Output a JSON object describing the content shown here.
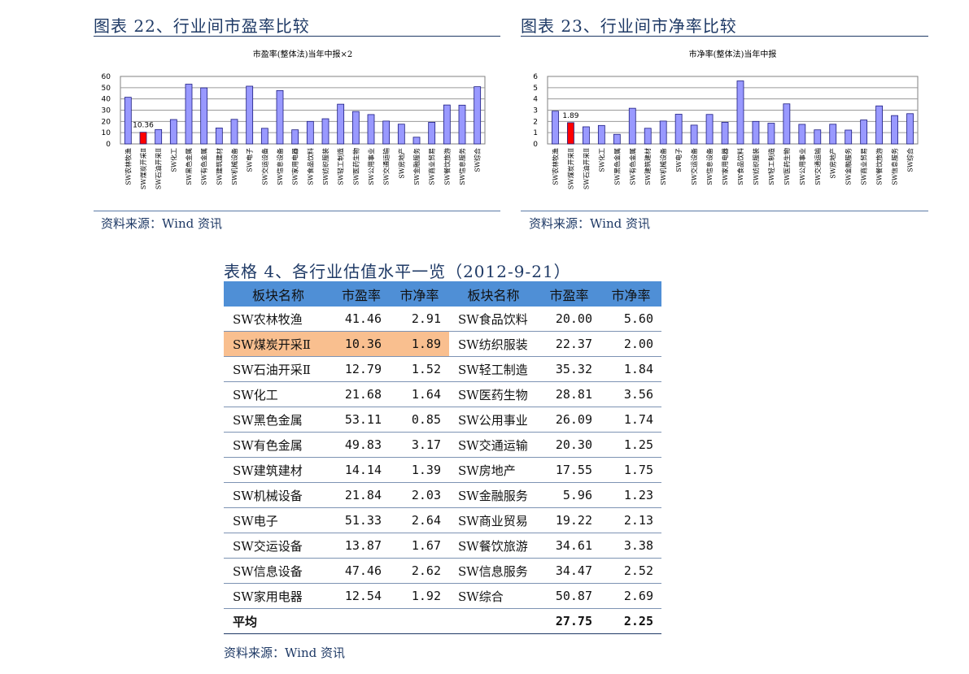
{
  "figure22": {
    "title": "图表 22、行业间市盈率比较",
    "source": "资料来源：Wind 资讯"
  },
  "figure23": {
    "title": "图表 23、行业间市净率比较",
    "source": "资料来源：Wind 资讯"
  },
  "chart_data": [
    {
      "type": "bar",
      "title": "市盈率(整体法)当年中报×2",
      "categories": [
        "SW农林牧渔",
        "SW煤炭开采Ⅱ",
        "SW石油开采Ⅱ",
        "SW化工",
        "SW黑色金属",
        "SW有色金属",
        "SW建筑建材",
        "SW机械设备",
        "SW电子",
        "SW交运设备",
        "SW信息设备",
        "SW家用电器",
        "SW食品饮料",
        "SW纺织服装",
        "SW轻工制造",
        "SW医药生物",
        "SW公用事业",
        "SW交通运输",
        "SW房地产",
        "SW金融服务",
        "SW商业贸易",
        "SW餐饮旅游",
        "SW信息服务",
        "SW综合"
      ],
      "values": [
        41.46,
        10.36,
        12.79,
        21.68,
        53.11,
        49.83,
        14.14,
        21.84,
        51.33,
        13.87,
        47.46,
        12.54,
        20.0,
        22.37,
        35.32,
        28.81,
        26.09,
        20.3,
        17.55,
        5.96,
        19.22,
        34.61,
        34.47,
        50.87
      ],
      "highlight_index": 1,
      "data_label": "10.36",
      "ylim": [
        0,
        60
      ],
      "yticks": [
        "0",
        "10",
        "20",
        "30",
        "40",
        "50",
        "60"
      ],
      "grid": true,
      "bar_color": "#9999ff",
      "highlight_color": "#ff0000"
    },
    {
      "type": "bar",
      "title": "市净率(整体法)当年中报",
      "categories": [
        "SW农林牧渔",
        "SW煤炭开采Ⅱ",
        "SW石油开采Ⅱ",
        "SW化工",
        "SW黑色金属",
        "SW有色金属",
        "SW建筑建材",
        "SW机械设备",
        "SW电子",
        "SW交运设备",
        "SW信息设备",
        "SW家用电器",
        "SW食品饮料",
        "SW纺织服装",
        "SW轻工制造",
        "SW医药生物",
        "SW公用事业",
        "SW交通运输",
        "SW房地产",
        "SW金融服务",
        "SW商业贸易",
        "SW餐饮旅游",
        "SW信息服务",
        "SW综合"
      ],
      "values": [
        2.91,
        1.89,
        1.52,
        1.64,
        0.85,
        3.17,
        1.39,
        2.03,
        2.64,
        1.67,
        2.62,
        1.92,
        5.6,
        2.0,
        1.84,
        3.56,
        1.74,
        1.25,
        1.75,
        1.23,
        2.13,
        3.38,
        2.52,
        2.69
      ],
      "highlight_index": 1,
      "data_label": "1.89",
      "ylim": [
        0,
        6
      ],
      "yticks": [
        "0",
        "1",
        "2",
        "3",
        "4",
        "5",
        "6"
      ],
      "grid": true,
      "bar_color": "#9999ff",
      "highlight_color": "#ff0000"
    }
  ],
  "table4": {
    "title": "表格 4、各行业估值水平一览（2012-9-21）",
    "headers": [
      "板块名称",
      "市盈率",
      "市净率",
      "板块名称",
      "市盈率",
      "市净率"
    ],
    "rows": [
      [
        "SW农林牧渔",
        "41.46",
        "2.91",
        "SW食品饮料",
        "20.00",
        "5.60"
      ],
      [
        "SW煤炭开采Ⅱ",
        "10.36",
        "1.89",
        "SW纺织服装",
        "22.37",
        "2.00"
      ],
      [
        "SW石油开采Ⅱ",
        "12.79",
        "1.52",
        "SW轻工制造",
        "35.32",
        "1.84"
      ],
      [
        "SW化工",
        "21.68",
        "1.64",
        "SW医药生物",
        "28.81",
        "3.56"
      ],
      [
        "SW黑色金属",
        "53.11",
        "0.85",
        "SW公用事业",
        "26.09",
        "1.74"
      ],
      [
        "SW有色金属",
        "49.83",
        "3.17",
        "SW交通运输",
        "20.30",
        "1.25"
      ],
      [
        "SW建筑建材",
        "14.14",
        "1.39",
        "SW房地产",
        "17.55",
        "1.75"
      ],
      [
        "SW机械设备",
        "21.84",
        "2.03",
        "SW金融服务",
        "5.96",
        "1.23"
      ],
      [
        "SW电子",
        "51.33",
        "2.64",
        "SW商业贸易",
        "19.22",
        "2.13"
      ],
      [
        "SW交运设备",
        "13.87",
        "1.67",
        "SW餐饮旅游",
        "34.61",
        "3.38"
      ],
      [
        "SW信息设备",
        "47.46",
        "2.62",
        "SW信息服务",
        "34.47",
        "2.52"
      ],
      [
        "SW家用电器",
        "12.54",
        "1.92",
        "SW综合",
        "50.87",
        "2.69"
      ]
    ],
    "highlight_row": 1,
    "highlight_color": "#f9bf8f",
    "header_color": "#4f8fd6",
    "average_label": "平均",
    "average_pe": "27.75",
    "average_pb": "2.25",
    "source": "资料来源：Wind 资讯"
  }
}
